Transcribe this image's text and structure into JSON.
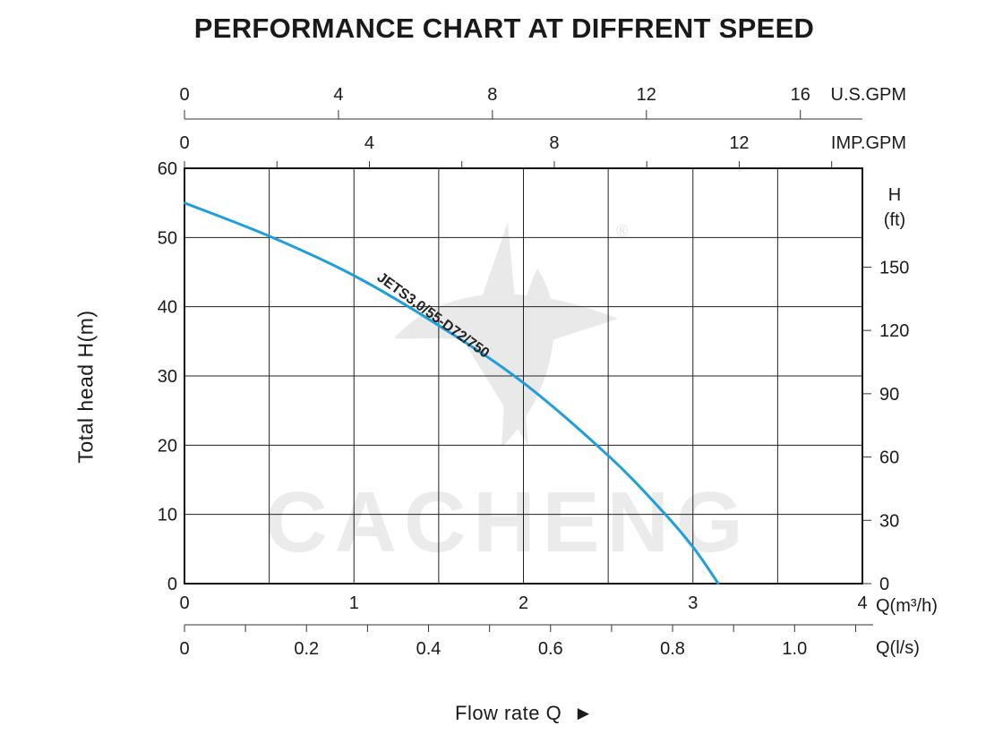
{
  "chart_data": {
    "type": "line",
    "title": "PERFORMANCE CHART AT DIFFRENT SPEED",
    "xlabel": "Flow rate  Q",
    "ylabel": "Total  head H(m)",
    "watermark": "CACHENG",
    "watermark_mark": "®",
    "grid": true,
    "xlim": [
      0,
      4
    ],
    "ylim": [
      0,
      60
    ],
    "x_ticks": [
      "0",
      "1",
      "2",
      "3",
      "4"
    ],
    "x_unit": "Q(m³/h)",
    "y_ticks": [
      "0",
      "10",
      "20",
      "30",
      "40",
      "50",
      "60"
    ],
    "axis_us_gpm": {
      "unit": "U.S.GPM",
      "ticks": [
        0,
        4,
        8,
        12,
        16
      ],
      "labels": [
        "0",
        "4",
        "8",
        "12",
        "16"
      ]
    },
    "axis_imp_gpm": {
      "unit": "IMP.GPM",
      "ticks": [
        0,
        4,
        8,
        12
      ],
      "labels": [
        "0",
        "4",
        "8",
        "12"
      ]
    },
    "axis_ft": {
      "unit_line1": "H",
      "unit_line2": "(ft)",
      "ticks": [
        0,
        30,
        60,
        90,
        120,
        150
      ],
      "labels": [
        "0",
        "30",
        "60",
        "90",
        "120",
        "150"
      ]
    },
    "axis_ls": {
      "unit": "Q(l/s)",
      "ticks": [
        0,
        0.2,
        0.4,
        0.6,
        0.8,
        1.0
      ],
      "labels": [
        "0",
        "0.2",
        "0.4",
        "0.6",
        "0.8",
        "1.0"
      ]
    },
    "series": [
      {
        "name": "JETS3.0/55-D72/750",
        "color": "#1e9fdc",
        "x": [
          0,
          0.5,
          1.0,
          1.5,
          2.0,
          2.5,
          2.8,
          3.0,
          3.15
        ],
        "y": [
          55,
          50.2,
          44.5,
          37.3,
          29.0,
          18.5,
          11.0,
          5.3,
          0
        ]
      }
    ]
  }
}
